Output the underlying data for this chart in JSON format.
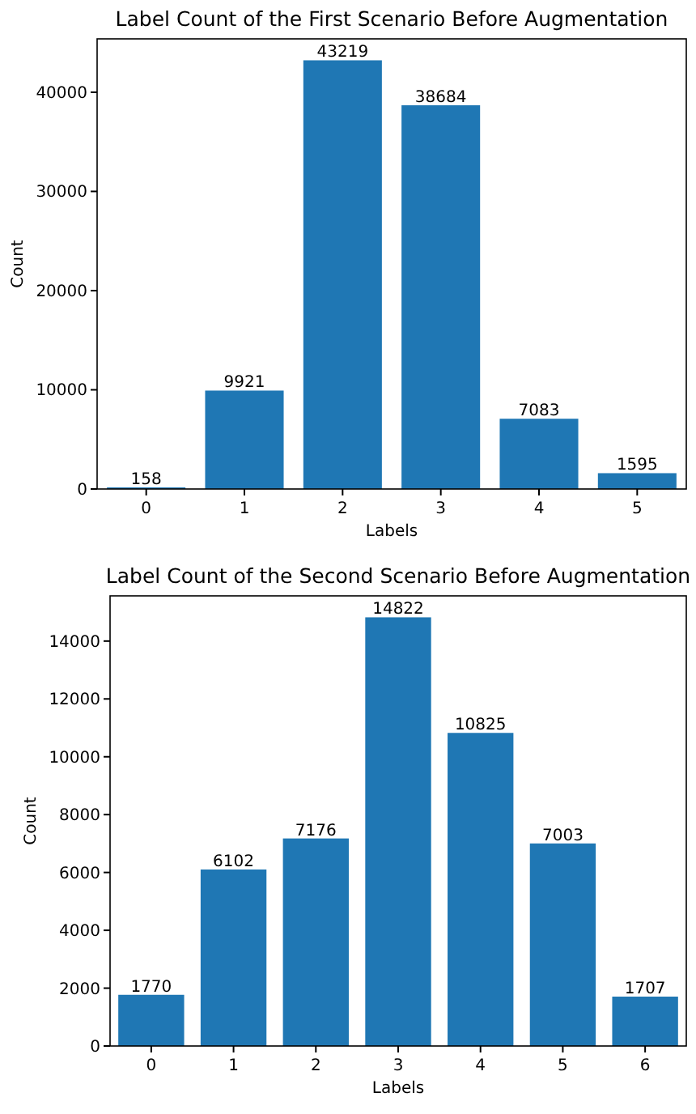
{
  "chart_data": [
    {
      "type": "bar",
      "title": "Label Count of the First Scenario Before Augmentation",
      "xlabel": "Labels",
      "ylabel": "Count",
      "categories": [
        "0",
        "1",
        "2",
        "3",
        "4",
        "5"
      ],
      "values": [
        158,
        9921,
        43219,
        38684,
        7083,
        1595
      ],
      "color": "#1f77b4",
      "ylim": [
        0,
        45380
      ],
      "yticks": [
        0,
        10000,
        20000,
        30000,
        40000
      ],
      "data_labels": true
    },
    {
      "type": "bar",
      "title": "Label Count of the Second Scenario Before Augmentation",
      "xlabel": "Labels",
      "ylabel": "Count",
      "categories": [
        "0",
        "1",
        "2",
        "3",
        "4",
        "5",
        "6"
      ],
      "values": [
        1770,
        6102,
        7176,
        14822,
        10825,
        7003,
        1707
      ],
      "color": "#1f77b4",
      "ylim": [
        0,
        15563
      ],
      "yticks": [
        0,
        2000,
        4000,
        6000,
        8000,
        10000,
        12000,
        14000
      ],
      "data_labels": true
    }
  ]
}
